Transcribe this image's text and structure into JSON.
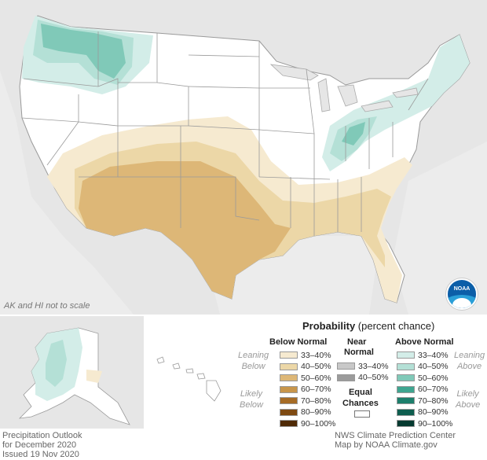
{
  "map": {
    "scale_note": "AK and HI not to scale",
    "logo_text": "NOAA"
  },
  "legend": {
    "title_bold": "Probability",
    "title_rest": " (percent chance)",
    "below_head": "Below Normal",
    "near_head_1": "Near",
    "near_head_2": "Normal",
    "above_head": "Above Normal",
    "leaning_1": "Leaning",
    "below_word": "Below",
    "above_word": "Above",
    "likely_1": "Likely",
    "equal_1": "Equal",
    "equal_2": "Chances",
    "below": [
      {
        "label": "33–40%",
        "color": "#f6ead0"
      },
      {
        "label": "40–50%",
        "color": "#ecd7a7"
      },
      {
        "label": "50–60%",
        "color": "#ddb777"
      },
      {
        "label": "60–70%",
        "color": "#c8964b"
      },
      {
        "label": "70–80%",
        "color": "#a66c26"
      },
      {
        "label": "80–90%",
        "color": "#7e4a12"
      },
      {
        "label": "90–100%",
        "color": "#4f2a06"
      }
    ],
    "near": [
      {
        "label": "33–40%",
        "color": "#c8c8c8"
      },
      {
        "label": "40–50%",
        "color": "#9b9b9b"
      }
    ],
    "above": [
      {
        "label": "33–40%",
        "color": "#d3ede8"
      },
      {
        "label": "40–50%",
        "color": "#b4e0d6"
      },
      {
        "label": "50–60%",
        "color": "#80c9b8"
      },
      {
        "label": "60–70%",
        "color": "#3fa590"
      },
      {
        "label": "70–80%",
        "color": "#1d7f6c"
      },
      {
        "label": "80–90%",
        "color": "#0e5e4f"
      },
      {
        "label": "90–100%",
        "color": "#053a30"
      }
    ]
  },
  "footer": {
    "left_1": "Precipitation Outlook",
    "left_2": "for December 2020",
    "left_3": "Issued 19 Nov 2020",
    "right_1": "NWS Climate Prediction Center",
    "right_2": "Map by NOAA Climate.gov"
  }
}
